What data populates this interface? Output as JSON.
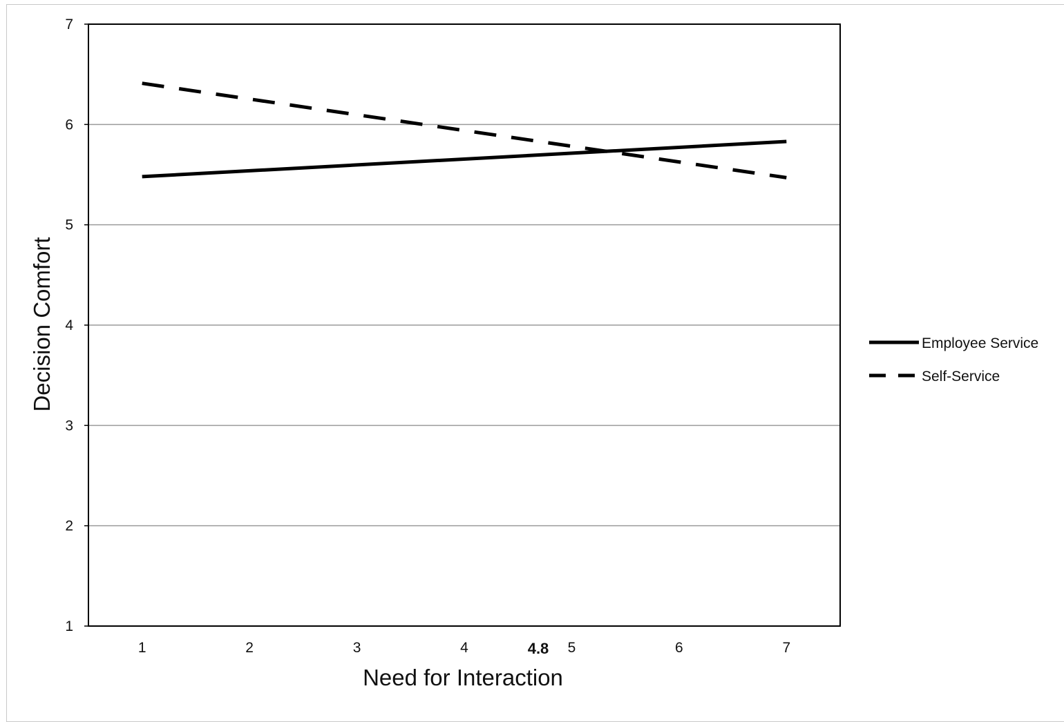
{
  "chart_data": {
    "type": "line",
    "title": "",
    "xlabel": "Need for Interaction",
    "ylabel": "Decision Comfort",
    "x_ticks": [
      "1",
      "2",
      "3",
      "4",
      "5",
      "6",
      "7"
    ],
    "y_ticks": [
      "1",
      "2",
      "3",
      "4",
      "5",
      "6",
      "7"
    ],
    "xlim": [
      0.5,
      7.5
    ],
    "ylim": [
      1,
      7
    ],
    "grid": "horizontal",
    "legend_position": "right",
    "annotations": [
      {
        "text": "4.8",
        "x": 4.8
      }
    ],
    "series": [
      {
        "name": "Employee Service",
        "style": "solid",
        "color": "#000000",
        "x": [
          1,
          7
        ],
        "y": [
          5.48,
          5.83
        ]
      },
      {
        "name": "Self-Service",
        "style": "dashed",
        "color": "#000000",
        "x": [
          1,
          7
        ],
        "y": [
          6.41,
          5.47
        ]
      }
    ]
  }
}
